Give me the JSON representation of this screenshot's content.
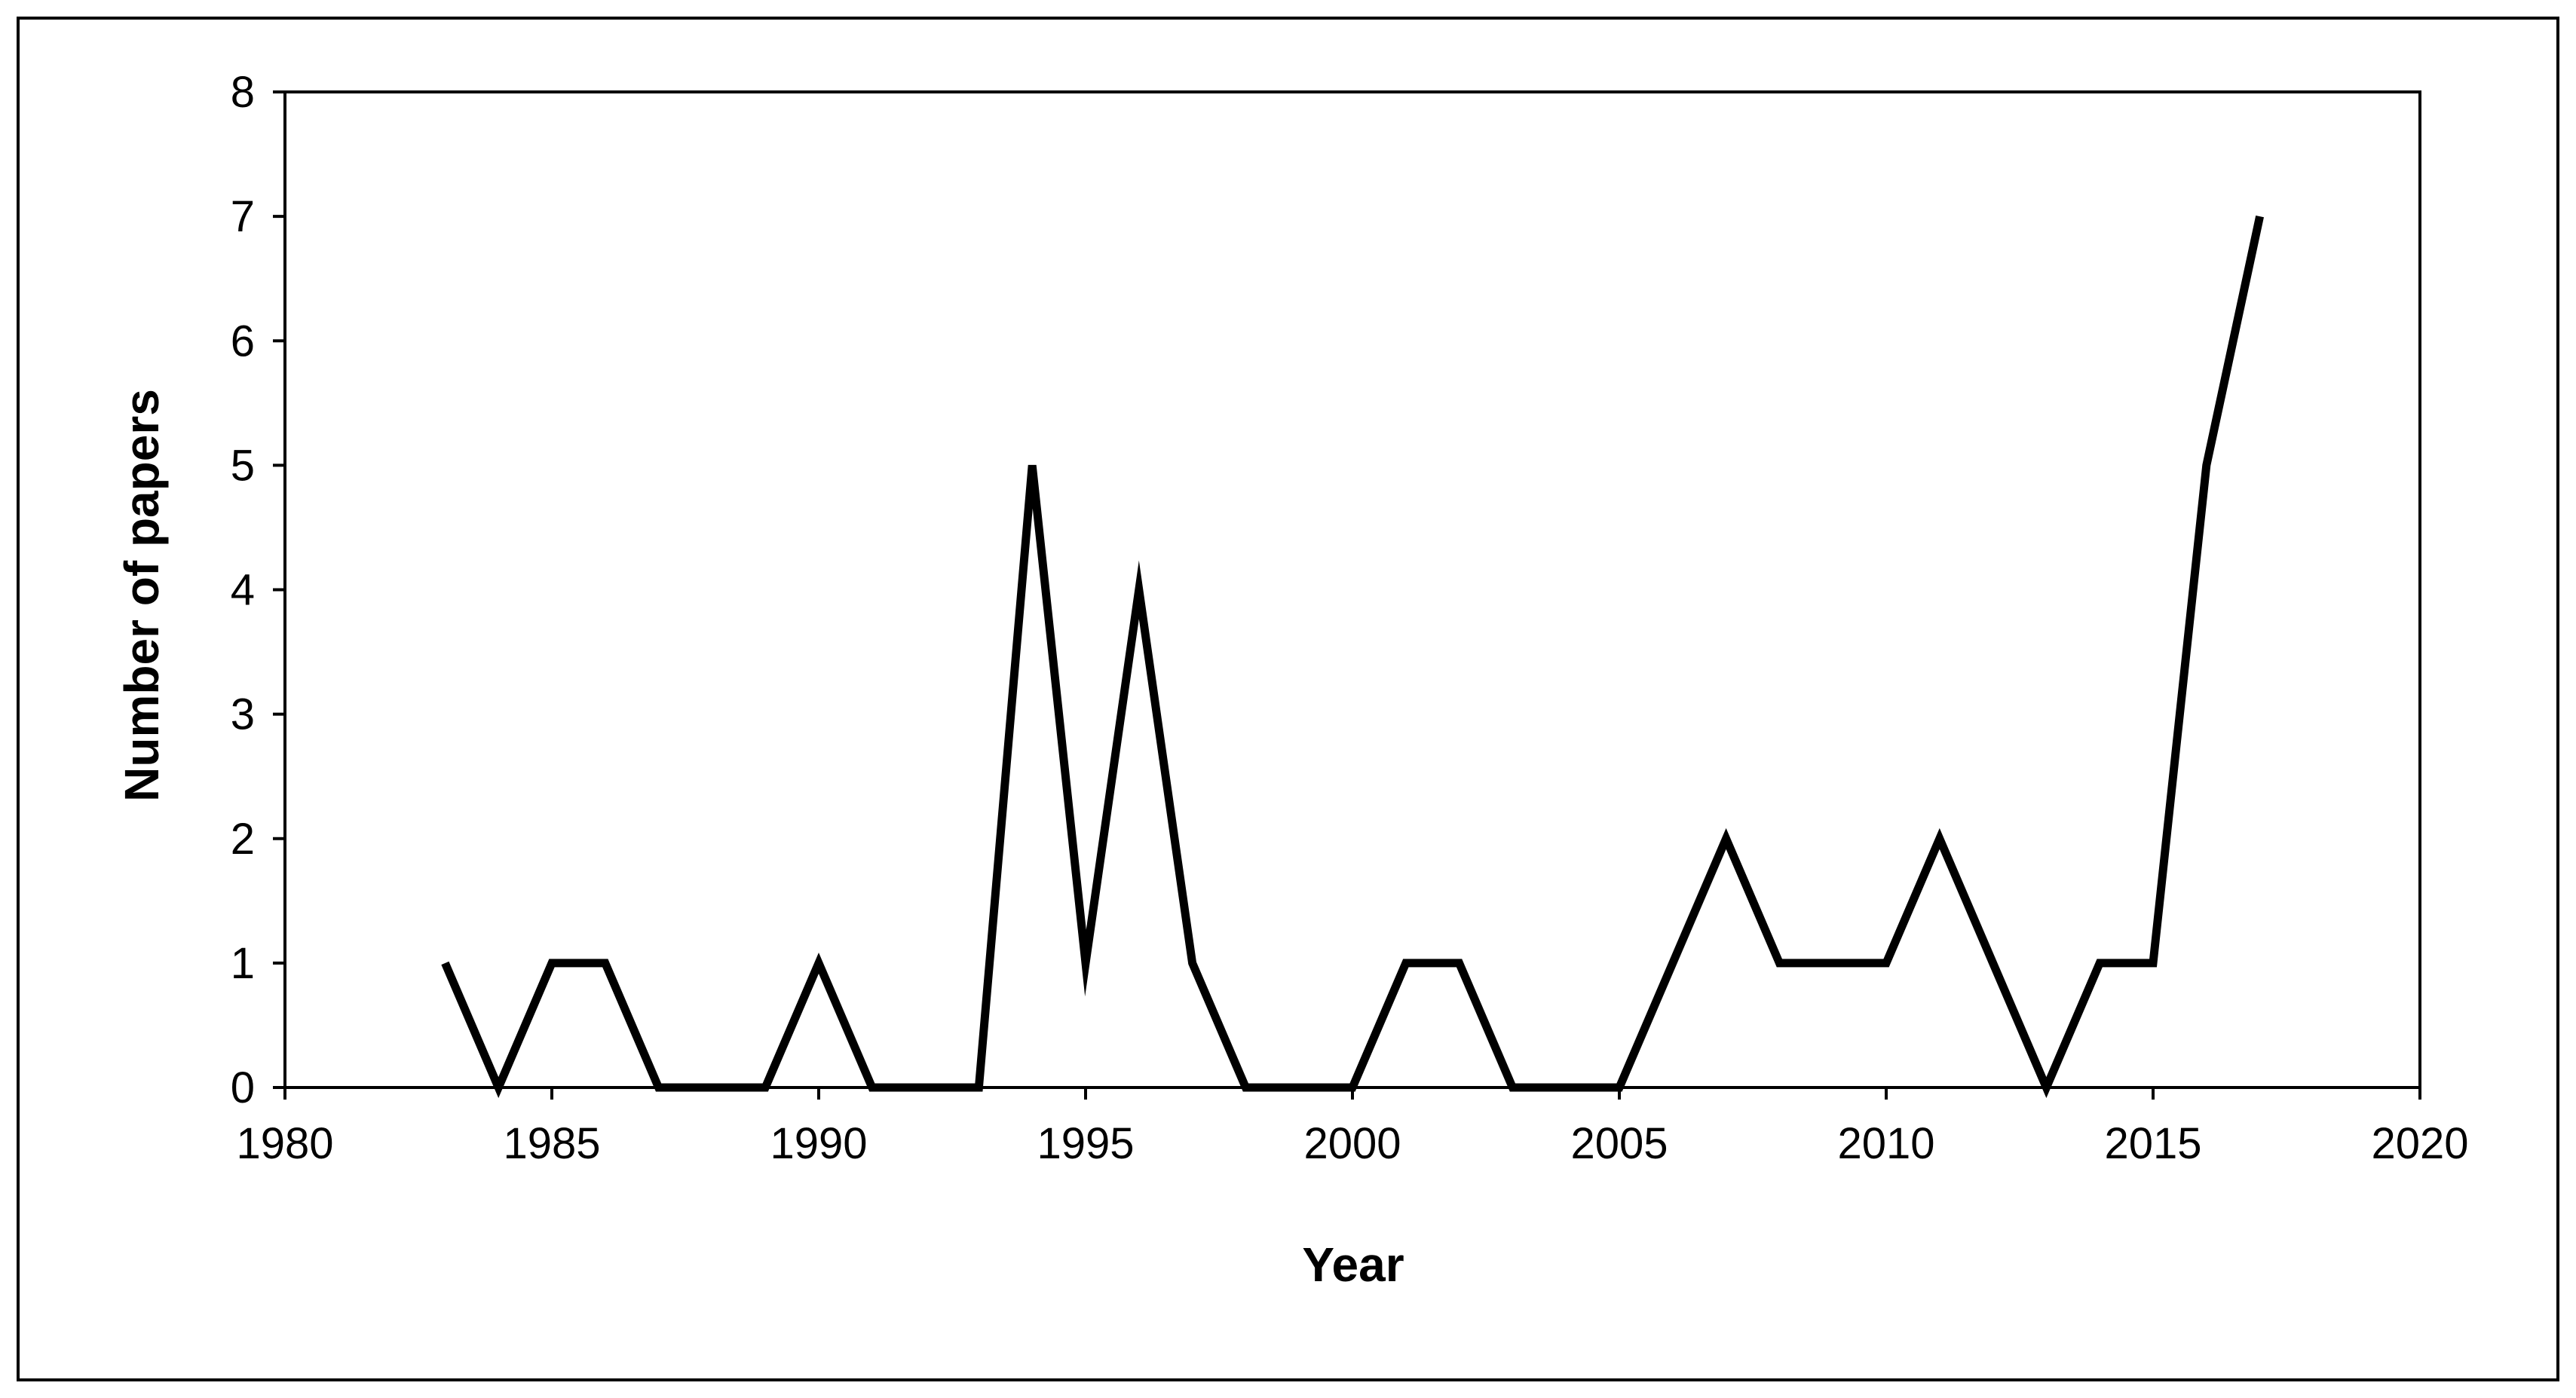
{
  "chart_data": {
    "type": "line",
    "title": "",
    "xlabel": "Year",
    "ylabel": "Number of papers",
    "xlim": [
      1980,
      2020
    ],
    "ylim": [
      0,
      8
    ],
    "x_ticks": [
      1980,
      1985,
      1990,
      1995,
      2000,
      2005,
      2010,
      2015,
      2020
    ],
    "y_ticks": [
      0,
      1,
      2,
      3,
      4,
      5,
      6,
      7,
      8
    ],
    "grid": false,
    "legend": "none",
    "series": [
      {
        "color": "#000000",
        "x": [
          1983,
          1984,
          1985,
          1986,
          1987,
          1988,
          1989,
          1990,
          1991,
          1992,
          1993,
          1994,
          1995,
          1996,
          1997,
          1998,
          1999,
          2000,
          2001,
          2002,
          2003,
          2004,
          2005,
          2006,
          2007,
          2008,
          2009,
          2010,
          2011,
          2012,
          2013,
          2014,
          2015,
          2016,
          2017
        ],
        "y": [
          1,
          0,
          1,
          1,
          0,
          0,
          0,
          1,
          0,
          0,
          0,
          5,
          1,
          4,
          1,
          0,
          0,
          0,
          1,
          1,
          0,
          0,
          0,
          1,
          2,
          1,
          1,
          1,
          2,
          1,
          0,
          1,
          1,
          5,
          7
        ]
      }
    ]
  }
}
